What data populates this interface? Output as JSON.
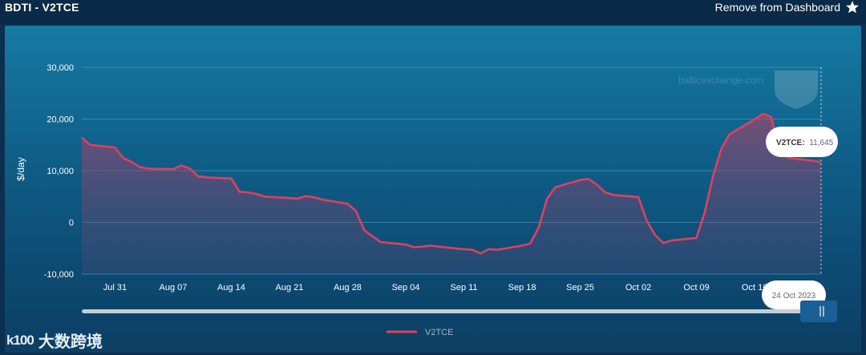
{
  "header": {
    "title": "BDTI - V2TCE",
    "dashboard_button": "Remove from Dashboard",
    "star_icon": "star-icon"
  },
  "watermark": "balticexchange.com",
  "footer": {
    "logo_mark": "k100",
    "logo_text": "大数跨境"
  },
  "tooltip": {
    "label": "V2TCE:",
    "value": "11,645"
  },
  "date_badge": "24 Oct 2023",
  "colors": {
    "series": "#e0405e",
    "background": "#0d2f4f"
  },
  "chart_data": {
    "type": "area",
    "title": "BDTI - V2TCE",
    "xlabel": "",
    "ylabel": "$/day",
    "ylim": [
      -10000,
      30000
    ],
    "yticks": [
      -10000,
      0,
      10000,
      20000,
      30000
    ],
    "ytick_labels": [
      "-10,000",
      "0",
      "10,000",
      "20,000",
      "30,000"
    ],
    "x_range": [
      "2023-07-27",
      "2023-10-24"
    ],
    "xticks": [
      "Jul 31",
      "Aug 07",
      "Aug 14",
      "Aug 21",
      "Aug 28",
      "Sep 04",
      "Sep 11",
      "Sep 18",
      "Sep 25",
      "Oct 02",
      "Oct 09",
      "Oct 16"
    ],
    "xtick_dates": [
      "2023-07-31",
      "2023-08-07",
      "2023-08-14",
      "2023-08-21",
      "2023-08-28",
      "2023-09-04",
      "2023-09-11",
      "2023-09-18",
      "2023-09-25",
      "2023-10-02",
      "2023-10-09",
      "2023-10-16"
    ],
    "grid": true,
    "legend_position": "bottom-center",
    "series": [
      {
        "name": "V2TCE",
        "color": "#e0405e",
        "x": [
          "2023-07-27",
          "2023-07-28",
          "2023-07-31",
          "2023-08-01",
          "2023-08-02",
          "2023-08-03",
          "2023-08-04",
          "2023-08-07",
          "2023-08-08",
          "2023-08-09",
          "2023-08-10",
          "2023-08-11",
          "2023-08-14",
          "2023-08-15",
          "2023-08-16",
          "2023-08-17",
          "2023-08-18",
          "2023-08-21",
          "2023-08-22",
          "2023-08-23",
          "2023-08-24",
          "2023-08-25",
          "2023-08-28",
          "2023-08-29",
          "2023-08-30",
          "2023-08-31",
          "2023-09-01",
          "2023-09-04",
          "2023-09-05",
          "2023-09-06",
          "2023-09-07",
          "2023-09-08",
          "2023-09-11",
          "2023-09-12",
          "2023-09-13",
          "2023-09-14",
          "2023-09-15",
          "2023-09-18",
          "2023-09-19",
          "2023-09-20",
          "2023-09-21",
          "2023-09-22",
          "2023-09-25",
          "2023-09-26",
          "2023-09-27",
          "2023-09-28",
          "2023-09-29",
          "2023-10-02",
          "2023-10-03",
          "2023-10-04",
          "2023-10-05",
          "2023-10-06",
          "2023-10-09",
          "2023-10-10",
          "2023-10-11",
          "2023-10-12",
          "2023-10-13",
          "2023-10-16",
          "2023-10-17",
          "2023-10-18",
          "2023-10-19",
          "2023-10-20",
          "2023-10-23",
          "2023-10-24"
        ],
        "values": [
          16400,
          15000,
          14500,
          12400,
          11700,
          10700,
          10400,
          10300,
          11000,
          10400,
          8900,
          8700,
          8500,
          5900,
          5800,
          5500,
          5000,
          4700,
          4600,
          5100,
          4800,
          4400,
          3600,
          2200,
          -1500,
          -2700,
          -3800,
          -4300,
          -4800,
          -4700,
          -4500,
          -4700,
          -5200,
          -5300,
          -6000,
          -5200,
          -5300,
          -4500,
          -4100,
          -1000,
          4500,
          6800,
          8200,
          8400,
          7300,
          5800,
          5300,
          4900,
          400,
          -2400,
          -4000,
          -3500,
          -3000,
          2000,
          9000,
          14300,
          17100,
          19900,
          21000,
          20400,
          13500,
          12500,
          11900,
          11645
        ]
      }
    ]
  }
}
